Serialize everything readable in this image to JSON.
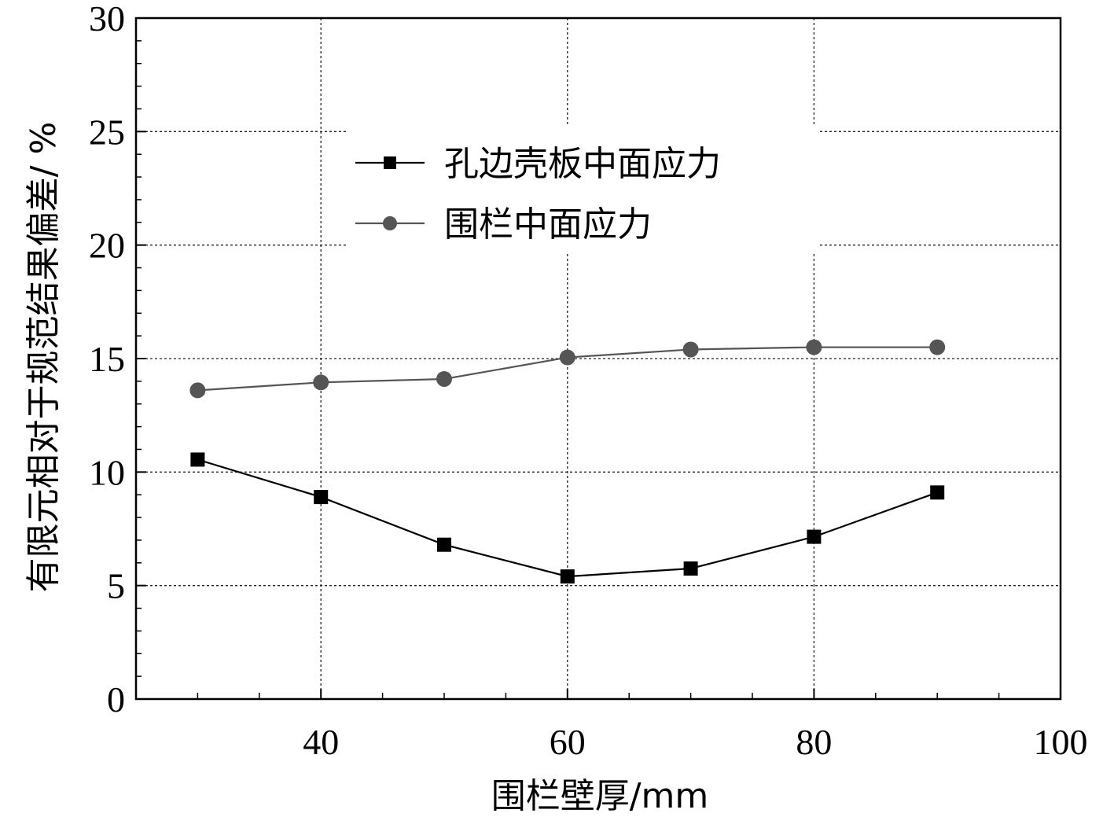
{
  "chart_data": {
    "type": "line",
    "xlabel": "围栏壁厚/mm",
    "ylabel": "有限元相对于规范结果偏差/ %",
    "xlim": [
      25,
      100
    ],
    "ylim": [
      0,
      30
    ],
    "x_ticks": [
      40,
      60,
      80,
      100
    ],
    "x_tick_labels": [
      "40",
      "60",
      "80",
      "100"
    ],
    "x_minor_ticks": [
      30,
      50,
      70,
      90
    ],
    "y_ticks": [
      0,
      5,
      10,
      15,
      20,
      25,
      30
    ],
    "y_tick_labels": [
      "0",
      "5",
      "10",
      "15",
      "20",
      "25",
      "30"
    ],
    "grid": true,
    "legend_position": "upper-center",
    "series": [
      {
        "name": "孔边壳板中面应力",
        "marker": "square",
        "color": "#000000",
        "x": [
          30,
          40,
          50,
          60,
          70,
          80,
          90
        ],
        "y": [
          10.55,
          8.9,
          6.8,
          5.4,
          5.75,
          7.15,
          9.1
        ]
      },
      {
        "name": "围栏中面应力",
        "marker": "circle",
        "color": "#555555",
        "x": [
          30,
          40,
          50,
          60,
          70,
          80,
          90
        ],
        "y": [
          13.6,
          13.95,
          14.1,
          15.05,
          15.4,
          15.5,
          15.5
        ]
      }
    ]
  }
}
